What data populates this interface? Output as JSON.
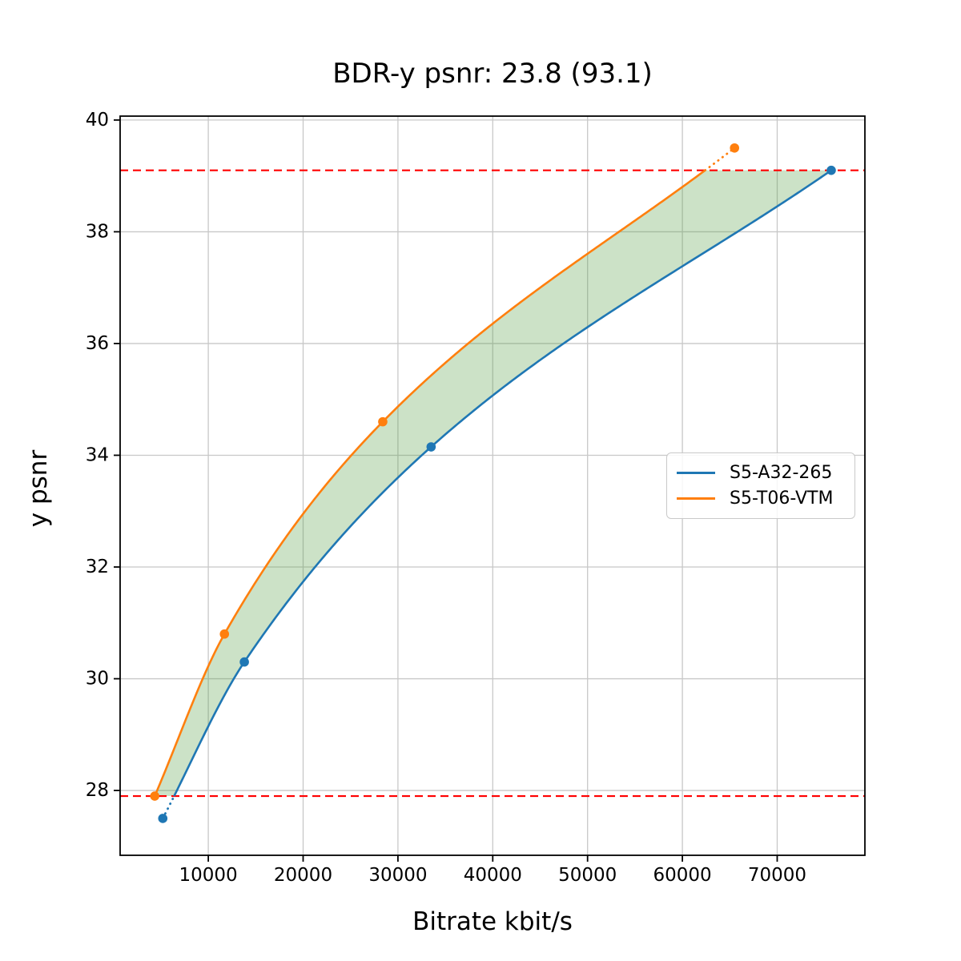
{
  "chart_data": {
    "type": "line",
    "title": "BDR-y psnr: 23.8 (93.1)",
    "xlabel": "Bitrate kbit/s",
    "ylabel": "y psnr",
    "bdr_value": 23.8,
    "bdr_secondary_value": 93.1,
    "xlim": [
      700,
      79250
    ],
    "ylim": [
      26.84,
      40.07
    ],
    "xticks": [
      10000,
      20000,
      30000,
      40000,
      50000,
      60000,
      70000
    ],
    "yticks": [
      28,
      30,
      32,
      34,
      36,
      38,
      40
    ],
    "grid": true,
    "grid_color": "#c8c8c8",
    "legend_position": "middle-right",
    "series": [
      {
        "name": "S5-A32-265",
        "color": "#1f77b4",
        "marker": "circle",
        "points": [
          [
            5200,
            27.5
          ],
          [
            13800,
            30.3
          ],
          [
            33500,
            34.15
          ],
          [
            75700,
            39.1
          ]
        ]
      },
      {
        "name": "S5-T06-VTM",
        "color": "#ff7f0e",
        "marker": "circle",
        "points": [
          [
            4350,
            27.9
          ],
          [
            11700,
            30.8
          ],
          [
            28400,
            34.6
          ],
          [
            65500,
            39.5
          ]
        ]
      }
    ],
    "overlap_band": {
      "lower_psnr": 27.9,
      "upper_psnr": 39.1,
      "line_color": "#ff0000",
      "line_style": "dashed",
      "fill_color": "rgba(85,160,70,0.30)"
    }
  }
}
